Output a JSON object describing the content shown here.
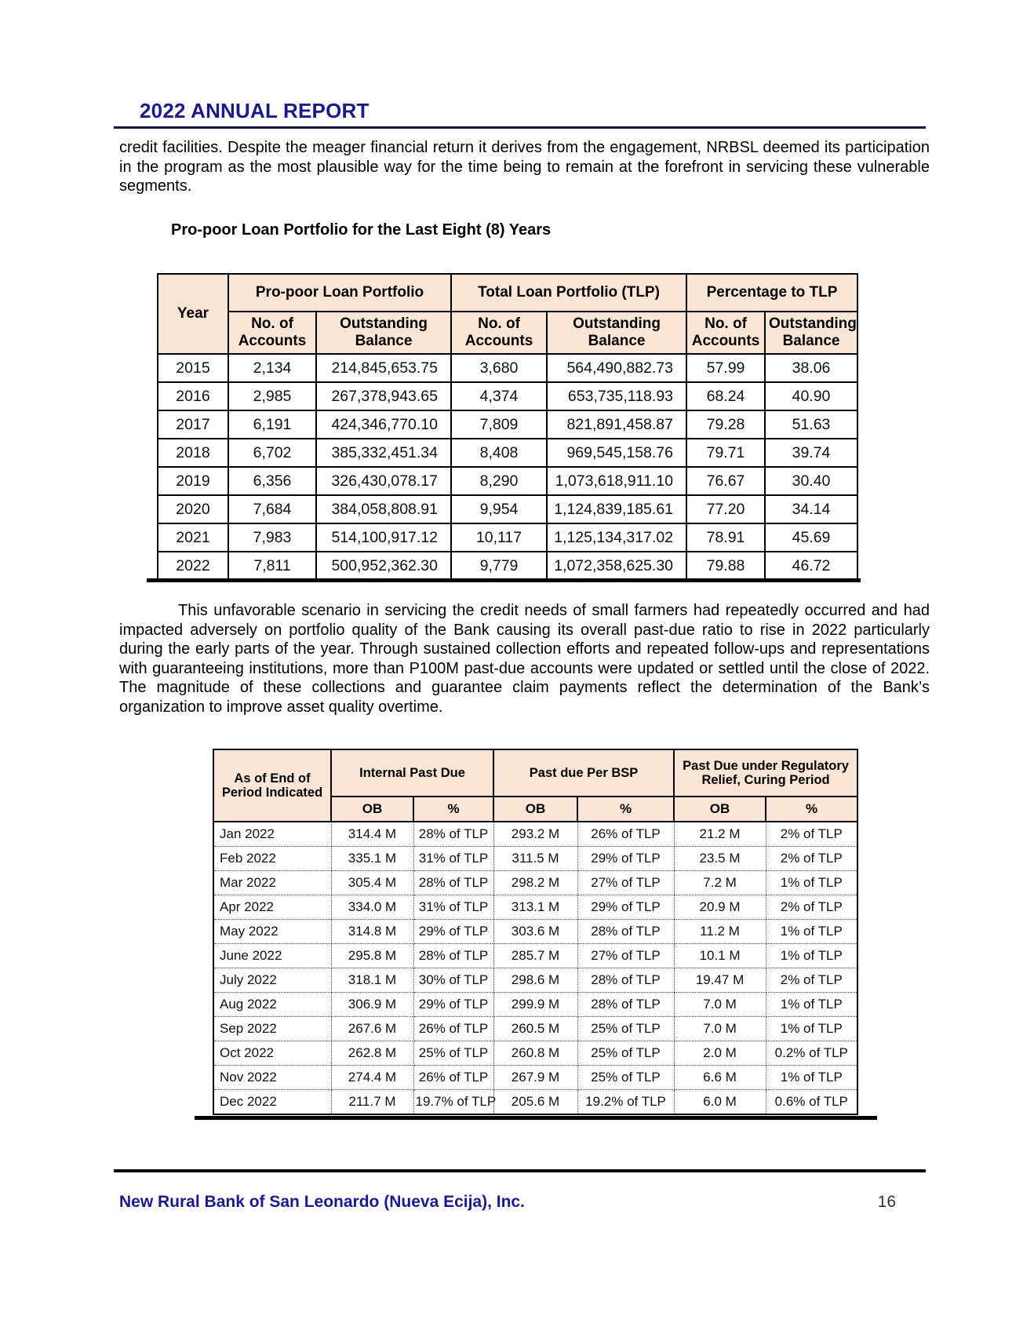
{
  "header": {
    "title": "2022 ANNUAL REPORT"
  },
  "paragraphs": {
    "p1": "credit facilities. Despite the meager financial return it derives from the engagement, NRBSL deemed its participation in the program as the most plausible way for the time being to remain at the forefront in servicing these vulnerable segments.",
    "p2": "This unfavorable scenario in servicing the credit needs of small farmers had repeatedly occurred and had impacted adversely on portfolio quality of the Bank causing its overall past-due ratio to rise in 2022 particularly during the early parts of the year. Through sustained collection efforts and repeated follow-ups and representations with guaranteeing institutions, more than P100M past-due accounts were updated or settled until the close of 2022. The magnitude of these collections and guarantee claim payments reflect the determination of the Bank’s organization to improve asset quality overtime."
  },
  "loan_table": {
    "title": "Pro-poor Loan Portfolio for the Last Eight (8) Years",
    "year_header": "Year",
    "groups": [
      "Pro-poor Loan Portfolio",
      "Total Loan Portfolio (TLP)",
      "Percentage to TLP"
    ],
    "sub_headers": [
      "No. of Accounts",
      "Outstanding Balance",
      "No. of Accounts",
      "Outstanding Balance",
      "No. of Accounts",
      "Outstanding Balance"
    ],
    "rows": [
      [
        "2015",
        "2,134",
        "214,845,653.75",
        "3,680",
        "564,490,882.73",
        "57.99",
        "38.06"
      ],
      [
        "2016",
        "2,985",
        "267,378,943.65",
        "4,374",
        "653,735,118.93",
        "68.24",
        "40.90"
      ],
      [
        "2017",
        "6,191",
        "424,346,770.10",
        "7,809",
        "821,891,458.87",
        "79.28",
        "51.63"
      ],
      [
        "2018",
        "6,702",
        "385,332,451.34",
        "8,408",
        "969,545,158.76",
        "79.71",
        "39.74"
      ],
      [
        "2019",
        "6,356",
        "326,430,078.17",
        "8,290",
        "1,073,618,911.10",
        "76.67",
        "30.40"
      ],
      [
        "2020",
        "7,684",
        "384,058,808.91",
        "9,954",
        "1,124,839,185.61",
        "77.20",
        "34.14"
      ],
      [
        "2021",
        "7,983",
        "514,100,917.12",
        "10,117",
        "1,125,134,317.02",
        "78.91",
        "45.69"
      ],
      [
        "2022",
        "7,811",
        "500,952,362.30",
        "9,779",
        "1,072,358,625.30",
        "79.88",
        "46.72"
      ]
    ]
  },
  "pastdue_table": {
    "period_header": "As of End of Period Indicated",
    "groups": [
      "Internal Past Due",
      "Past due Per BSP",
      "Past Due under Regulatory Relief, Curing Period"
    ],
    "sub_headers": [
      "OB",
      "%",
      "OB",
      "%",
      "OB",
      "%"
    ],
    "rows": [
      [
        "Jan 2022",
        "314.4 M",
        "28% of TLP",
        "293.2 M",
        "26% of TLP",
        "21.2 M",
        "2% of TLP"
      ],
      [
        "Feb 2022",
        "335.1 M",
        "31% of TLP",
        "311.5 M",
        "29% of TLP",
        "23.5 M",
        "2% of TLP"
      ],
      [
        "Mar 2022",
        "305.4 M",
        "28% of TLP",
        "298.2 M",
        "27% of TLP",
        "7.2 M",
        "1% of TLP"
      ],
      [
        "Apr 2022",
        "334.0 M",
        "31% of TLP",
        "313.1 M",
        "29% of TLP",
        "20.9 M",
        "2% of TLP"
      ],
      [
        "May 2022",
        "314.8 M",
        "29% of TLP",
        "303.6 M",
        "28% of TLP",
        "11.2 M",
        "1% of TLP"
      ],
      [
        "June 2022",
        "295.8 M",
        "28% of TLP",
        "285.7 M",
        "27% of TLP",
        "10.1 M",
        "1% of TLP"
      ],
      [
        "July 2022",
        "318.1 M",
        "30% of TLP",
        "298.6 M",
        "28% of TLP",
        "19.47 M",
        "2% of TLP"
      ],
      [
        "Aug 2022",
        "306.9 M",
        "29% of TLP",
        "299.9 M",
        "28% of TLP",
        "7.0 M",
        "1% of TLP"
      ],
      [
        "Sep 2022",
        "267.6 M",
        "26% of TLP",
        "260.5 M",
        "25% of TLP",
        "7.0 M",
        "1% of TLP"
      ],
      [
        "Oct 2022",
        "262.8 M",
        "25% of TLP",
        "260.8 M",
        "25% of TLP",
        "2.0 M",
        "0.2% of TLP"
      ],
      [
        "Nov 2022",
        "274.4 M",
        "26% of TLP",
        "267.9 M",
        "25% of TLP",
        "6.6 M",
        "1% of TLP"
      ],
      [
        "Dec 2022",
        "211.7 M",
        "19.7% of TLP",
        "205.6 M",
        "19.2% of TLP",
        "6.0 M",
        "0.6% of TLP"
      ]
    ]
  },
  "footer": {
    "bank_name": "New Rural Bank of San Leonardo (Nueva Ecija), Inc.",
    "page_number": "16"
  },
  "colors": {
    "accent_navy": "#1a1a8c",
    "table_header_bg": "#fbe5d6",
    "rule_black": "#000000"
  }
}
